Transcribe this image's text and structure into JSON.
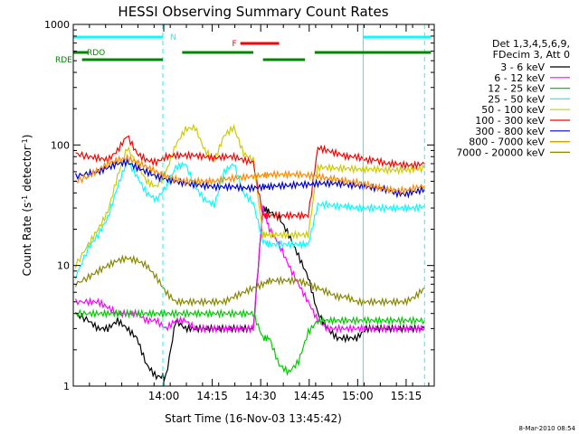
{
  "chart_data": {
    "type": "line",
    "title": "HESSI Observing Summary Count Rates",
    "xlabel": "Start Time (16-Nov-03 13:45:42)",
    "ylabel_main": "Count Rate (s",
    "ylabel_sup1": "-1",
    "ylabel_mid": " detector",
    "ylabel_sup2": "-1",
    "ylabel_end": ")",
    "y_scale": "log",
    "ylim": [
      1,
      1000
    ],
    "y_ticks": [
      {
        "v": 1,
        "label": "1"
      },
      {
        "v": 10,
        "label": "10"
      },
      {
        "v": 100,
        "label": "100"
      },
      {
        "v": 1000,
        "label": "1000"
      }
    ],
    "x_range_min": [
      -13.7,
      260
    ],
    "x_ticks": [
      {
        "t": 14.3,
        "label": "14:00"
      },
      {
        "t": 29.3,
        "label": "14:15"
      },
      {
        "t": 44.3,
        "label": "14:30"
      },
      {
        "t": 59.3,
        "label": "14:45"
      },
      {
        "t": 74.3,
        "label": "15:00"
      },
      {
        "t": 89.3,
        "label": "15:15"
      }
    ],
    "legend_header": [
      "Det 1,3,4,5,6,9,",
      "FDecim 3, Att 0"
    ],
    "legend_placement": "right-outside",
    "series": [
      {
        "name": "3 - 6 keV",
        "color": "#000000",
        "x": [
          -13,
          -9,
          -6,
          -3,
          0,
          3,
          6,
          9,
          12,
          15,
          18,
          21,
          24,
          27,
          30,
          33,
          36,
          39,
          42,
          45,
          47,
          50,
          53,
          56,
          59,
          62,
          65,
          68,
          71,
          74,
          77,
          80,
          83,
          86,
          89,
          92,
          95
        ],
        "y": [
          4,
          3.5,
          3,
          3,
          3.5,
          3,
          2.5,
          1.5,
          1.2,
          1.2,
          3.5,
          3,
          3,
          3,
          3,
          3,
          3,
          3,
          3,
          30,
          28,
          25,
          18,
          12,
          8,
          4,
          3,
          2.5,
          2.5,
          2.5,
          3,
          3,
          3,
          3,
          3,
          3,
          3
        ]
      },
      {
        "name": "6 - 12 keV",
        "color": "#ff00ff",
        "x": [
          -13,
          -9,
          -6,
          -3,
          0,
          3,
          6,
          9,
          12,
          15,
          18,
          21,
          24,
          27,
          30,
          33,
          36,
          39,
          42,
          45,
          47,
          50,
          53,
          56,
          59,
          62,
          65,
          68,
          71,
          74,
          77,
          80,
          83,
          86,
          89,
          92,
          95
        ],
        "y": [
          5,
          5,
          5,
          4.5,
          4,
          4,
          4,
          3.5,
          3.5,
          3,
          3.5,
          3.5,
          3,
          3,
          3,
          3,
          3,
          3,
          3,
          30,
          20,
          15,
          10,
          7,
          5,
          3.5,
          3,
          3,
          3,
          3,
          3,
          3,
          3,
          3,
          3,
          3,
          3
        ]
      },
      {
        "name": "12 - 25 keV",
        "color": "#00cc00",
        "x": [
          -13,
          -9,
          -6,
          -3,
          0,
          3,
          6,
          9,
          12,
          15,
          18,
          21,
          24,
          27,
          30,
          33,
          36,
          39,
          42,
          45,
          47,
          50,
          53,
          56,
          59,
          62,
          65,
          68,
          71,
          74,
          77,
          80,
          83,
          86,
          89,
          92,
          95
        ],
        "y": [
          4,
          4,
          4,
          4,
          4,
          4,
          4,
          4,
          4,
          4,
          4,
          4,
          4,
          4,
          4,
          4,
          4,
          4,
          4,
          2.5,
          2.5,
          1.5,
          1.3,
          1.6,
          2.8,
          3.5,
          3.5,
          3.5,
          3.5,
          3.5,
          3.5,
          3.5,
          3.5,
          3.5,
          3.5,
          3.5,
          3.5
        ]
      },
      {
        "name": "25 - 50 keV",
        "color": "#00ffff",
        "x": [
          -13,
          -9,
          -6,
          -3,
          0,
          3,
          6,
          9,
          12,
          15,
          18,
          21,
          24,
          27,
          30,
          33,
          36,
          39,
          42,
          45,
          47,
          50,
          53,
          56,
          59,
          62,
          65,
          68,
          71,
          74,
          77,
          80,
          83,
          86,
          89,
          92,
          95
        ],
        "y": [
          8,
          14,
          18,
          25,
          45,
          75,
          55,
          40,
          35,
          45,
          65,
          70,
          45,
          35,
          32,
          60,
          70,
          40,
          33,
          16,
          15,
          15,
          15,
          15,
          15,
          32,
          32,
          31,
          31,
          30,
          30,
          30,
          30,
          30,
          30,
          30,
          31
        ]
      },
      {
        "name": "50 - 100 keV",
        "color": "#cccc00",
        "x": [
          -13,
          -9,
          -6,
          -3,
          0,
          3,
          6,
          9,
          12,
          15,
          18,
          21,
          24,
          27,
          30,
          33,
          36,
          39,
          42,
          45,
          47,
          50,
          53,
          56,
          59,
          62,
          65,
          68,
          71,
          74,
          77,
          80,
          83,
          86,
          89,
          92,
          95
        ],
        "y": [
          10,
          15,
          20,
          28,
          55,
          95,
          70,
          50,
          45,
          60,
          100,
          135,
          140,
          90,
          75,
          120,
          140,
          85,
          75,
          18,
          18,
          18,
          18,
          18,
          18,
          65,
          65,
          64,
          64,
          63,
          63,
          63,
          62,
          62,
          62,
          63,
          64
        ]
      },
      {
        "name": "100 - 300 keV",
        "color": "#ff0000",
        "x": [
          -13,
          -9,
          -6,
          -3,
          0,
          3,
          6,
          9,
          12,
          15,
          18,
          21,
          24,
          27,
          30,
          33,
          36,
          39,
          42,
          45,
          47,
          50,
          53,
          56,
          59,
          62,
          65,
          68,
          71,
          74,
          77,
          80,
          83,
          86,
          89,
          92,
          95
        ],
        "y": [
          85,
          80,
          78,
          75,
          90,
          120,
          85,
          75,
          72,
          80,
          82,
          82,
          82,
          80,
          78,
          80,
          80,
          75,
          72,
          26,
          26,
          26,
          26,
          26,
          26,
          95,
          90,
          85,
          80,
          80,
          75,
          75,
          70,
          70,
          68,
          68,
          70
        ]
      },
      {
        "name": "300 - 800 keV",
        "color": "#0000cc",
        "x": [
          -13,
          -9,
          -6,
          -3,
          0,
          3,
          6,
          9,
          12,
          15,
          18,
          21,
          24,
          27,
          30,
          33,
          36,
          39,
          42,
          45,
          47,
          50,
          53,
          56,
          59,
          62,
          65,
          68,
          71,
          74,
          77,
          80,
          83,
          86,
          89,
          92,
          95
        ],
        "y": [
          55,
          58,
          60,
          65,
          70,
          72,
          65,
          60,
          55,
          52,
          50,
          48,
          47,
          46,
          45,
          45,
          45,
          44,
          44,
          45,
          45,
          46,
          46,
          47,
          47,
          48,
          48,
          48,
          47,
          46,
          45,
          44,
          43,
          40,
          39,
          41,
          43
        ]
      },
      {
        "name": "800 - 7000 keV",
        "color": "#ff8800",
        "x": [
          -13,
          -9,
          -6,
          -3,
          0,
          3,
          6,
          9,
          12,
          15,
          18,
          21,
          24,
          27,
          30,
          33,
          36,
          39,
          42,
          45,
          47,
          50,
          53,
          56,
          59,
          62,
          65,
          68,
          71,
          74,
          77,
          80,
          83,
          86,
          89,
          92,
          95
        ],
        "y": [
          50,
          55,
          62,
          70,
          75,
          78,
          72,
          66,
          60,
          55,
          52,
          50,
          50,
          50,
          50,
          52,
          53,
          54,
          55,
          56,
          57,
          57,
          57,
          57,
          56,
          55,
          53,
          52,
          50,
          49,
          47,
          45,
          43,
          42,
          42,
          44,
          46
        ]
      },
      {
        "name": "7000 - 20000 keV",
        "color": "#888800",
        "x": [
          -13,
          -9,
          -6,
          -3,
          0,
          3,
          6,
          9,
          12,
          15,
          18,
          21,
          24,
          27,
          30,
          33,
          36,
          39,
          42,
          45,
          47,
          50,
          53,
          56,
          59,
          62,
          65,
          68,
          71,
          74,
          77,
          80,
          83,
          86,
          89,
          92,
          95
        ],
        "y": [
          7,
          8,
          9,
          10,
          11,
          11.5,
          11,
          10,
          8,
          6,
          5,
          5,
          5,
          5,
          5,
          5,
          5.5,
          6,
          6.5,
          7,
          7.5,
          7.5,
          7.5,
          7.5,
          7,
          6.5,
          6,
          5.5,
          5.5,
          5,
          5,
          5,
          5,
          5,
          5,
          5.5,
          6.5
        ]
      }
    ],
    "state_bars": [
      {
        "label": "N",
        "color": "#00ffff",
        "level": "top",
        "segments": [
          [
            -14,
            14
          ],
          [
            76,
            97
          ]
        ]
      },
      {
        "label": "F",
        "color": "#ff0000",
        "level": "upper",
        "segments": [
          [
            38,
            50
          ]
        ]
      },
      {
        "label": "RDO",
        "color": "#008800",
        "level": "mid",
        "segments": [
          [
            -14,
            -9
          ],
          [
            20,
            42
          ],
          [
            61,
            97
          ]
        ]
      },
      {
        "label": "RDE",
        "color": "#008800",
        "level": "low",
        "segments": [
          [
            -11,
            14
          ],
          [
            45,
            58
          ]
        ]
      }
    ],
    "vlines_solid": [
      -13.7,
      76
    ],
    "vlines_dashed": [
      14,
      95
    ],
    "vline_color": "#00ffff",
    "footer_date": "8-Mar-2010 08:54"
  }
}
